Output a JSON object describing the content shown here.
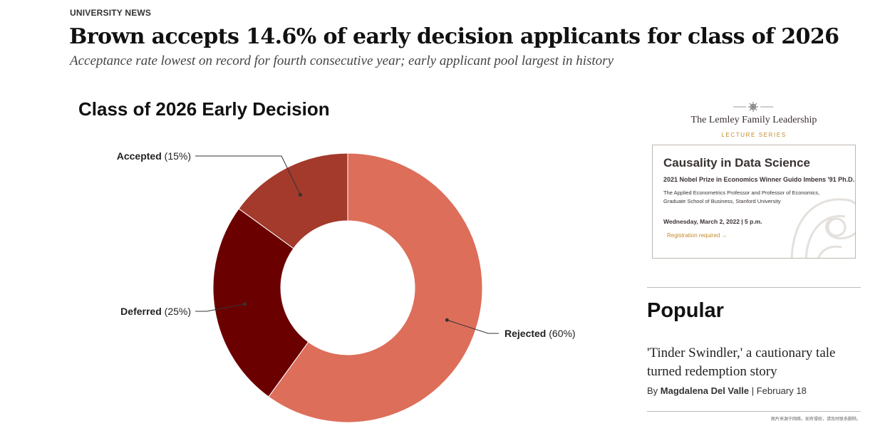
{
  "article": {
    "kicker": "UNIVERSITY NEWS",
    "headline": "Brown accepts 14.6% of early decision applicants for class of 2026",
    "dek": "Acceptance rate lowest on record for fourth consecutive year; early applicant pool largest in history"
  },
  "chart_data": {
    "type": "pie",
    "title": "Class of 2026 Early Decision",
    "slices": [
      {
        "label": "Rejected",
        "pct_text": "(60%)",
        "value": 60,
        "color": "#dd6e5a"
      },
      {
        "label": "Deferred",
        "pct_text": "(25%)",
        "value": 25,
        "color": "#6b0000"
      },
      {
        "label": "Accepted",
        "pct_text": "(15%)",
        "value": 15,
        "color": "#a33a2c"
      }
    ],
    "donut": true,
    "start": "top, clockwise",
    "legend": "none (callout labels)"
  },
  "ad": {
    "series": "The Lemley Family Leadership",
    "sub": "LECTURE SERIES",
    "title": "Causality in Data Science",
    "prize": "2021 Nobel Prize in Economics Winner Guido Imbens '91 Ph.D.",
    "role": "The Applied Econometrics Professor and Professor of Economics, Graduate School of Business, Stanford University",
    "date": "Wednesday, March 2, 2022  |  5 p.m.",
    "cta": "Registration required →",
    "colors": {
      "accent": "#c28a2c",
      "text": "#3a3232"
    }
  },
  "popular": {
    "heading": "Popular",
    "title": "'Tinder Swindler,' a cautionary tale turned redemption story",
    "by_prefix": "By",
    "author": "Magdalena Del Valle",
    "separator": "|",
    "date": "February 18"
  },
  "watermark": "图片来源于网络，如有侵权，请及时联系删除。"
}
